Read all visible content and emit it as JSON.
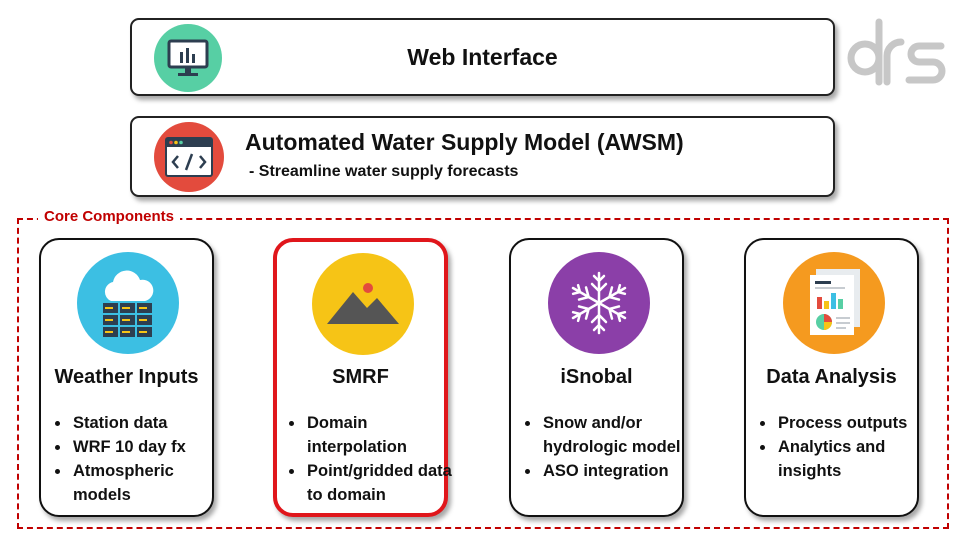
{
  "web_interface": {
    "title": "Web Interface",
    "icon": "monitor-chart-icon"
  },
  "awsm": {
    "title": "Automated Water Supply Model (AWSM)",
    "subtitle": "- Streamline water supply forecasts",
    "icon": "code-window-icon"
  },
  "core": {
    "label": "Core Components",
    "cards": [
      {
        "title": "Weather Inputs",
        "icon": "cloud-server-icon",
        "bullets": [
          "Station data",
          "WRF 10 day fx",
          "Atmospheric models"
        ]
      },
      {
        "title": "SMRF",
        "icon": "mountain-sun-icon",
        "highlighted": true,
        "bullets": [
          "Domain interpolation",
          "Point/gridded data to domain"
        ]
      },
      {
        "title": "iSnobal",
        "icon": "snowflake-icon",
        "bullets": [
          "Snow and/or hydrologic model",
          "ASO integration"
        ]
      },
      {
        "title": "Data Analysis",
        "icon": "report-chart-icon",
        "bullets": [
          "Process outputs",
          "Analytics and insights"
        ]
      }
    ]
  },
  "logo": {
    "text": "ars"
  },
  "colors": {
    "accent_red": "#c00000",
    "highlight_red": "#e0161b",
    "teal": "#57cfa4",
    "code_red": "#e34b3d",
    "sky_blue": "#3cbfe3",
    "sun_yellow": "#f6c416",
    "purple": "#8b3fa8",
    "orange": "#f59a1f"
  }
}
